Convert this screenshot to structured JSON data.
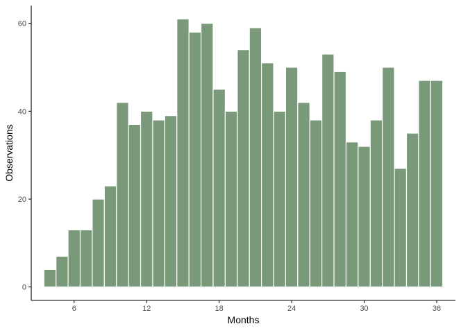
{
  "colors": {
    "bar_fill": "#7a987a",
    "bar_stroke": "#ffffff",
    "axis": "#000000",
    "tick_text": "#4d4d4d",
    "background": "#ffffff"
  },
  "chart_data": {
    "type": "bar",
    "title": "",
    "xlabel": "Months",
    "ylabel": "Observations",
    "x": [
      4,
      5,
      6,
      7,
      8,
      9,
      10,
      11,
      12,
      13,
      14,
      15,
      16,
      17,
      18,
      19,
      20,
      21,
      22,
      23,
      24,
      25,
      26,
      27,
      28,
      29,
      30,
      31,
      32,
      33,
      34,
      35,
      36
    ],
    "values": [
      4,
      7,
      13,
      13,
      20,
      23,
      42,
      37,
      40,
      38,
      39,
      61,
      58,
      60,
      45,
      40,
      54,
      59,
      51,
      40,
      50,
      42,
      38,
      53,
      49,
      33,
      32,
      38,
      50,
      27,
      35,
      47,
      47
    ],
    "bin_width": 1,
    "xlim": [
      2.45,
      37.55
    ],
    "ylim": [
      -3.05,
      64.05
    ],
    "xticks": [
      6,
      12,
      18,
      24,
      30,
      36
    ],
    "yticks": [
      0,
      20,
      40,
      60
    ],
    "grid": false,
    "legend": "none"
  }
}
